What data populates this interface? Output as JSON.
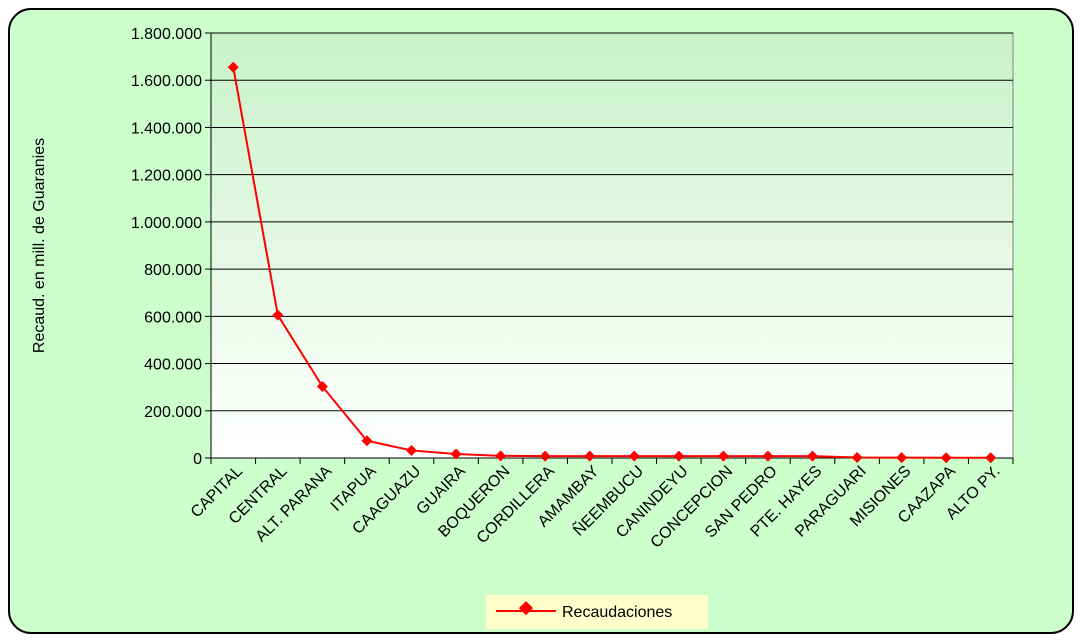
{
  "chart_data": {
    "type": "line",
    "title": "",
    "ylabel": "Recaud. en mill. de Guaranies",
    "xlabel": "",
    "categories": [
      "CAPITAL",
      "CENTRAL",
      "ALT. PARANA",
      "ITAPUA",
      "CAAGUAZU",
      "GUAIRA",
      "BOQUERON",
      "CORDILLERA",
      "AMAMBAY",
      "ÑEEMBUCU",
      "CANINDEYU",
      "CONCEPCION",
      "SAN PEDRO",
      "PTE. HAYES",
      "PARAGUARI",
      "MISIONES",
      "CAAZAPA",
      "ALTO PY."
    ],
    "series": [
      {
        "name": "Recaudaciones",
        "color": "#ff0000",
        "values": [
          1655000,
          605000,
          303000,
          73000,
          32000,
          17000,
          9000,
          8000,
          8000,
          8000,
          8000,
          8000,
          8000,
          8000,
          2000,
          1500,
          1000,
          1000
        ]
      }
    ],
    "ylim": [
      0,
      1800000
    ],
    "yticks": [
      0,
      200000,
      400000,
      600000,
      800000,
      1000000,
      1200000,
      1400000,
      1600000,
      1800000
    ],
    "ytick_labels": [
      "0",
      "200.000",
      "400.000",
      "600.000",
      "800.000",
      "1.000.000",
      "1.200.000",
      "1.400.000",
      "1.600.000",
      "1.800.000"
    ],
    "grid": true,
    "legend_position": "bottom-center",
    "colors": {
      "background": "#ccffcc",
      "plot_gradient_top": "#c8f2c8",
      "plot_gradient_bottom": "#ffffff",
      "legend_background": "#ffffcc",
      "border": "#000000"
    }
  }
}
